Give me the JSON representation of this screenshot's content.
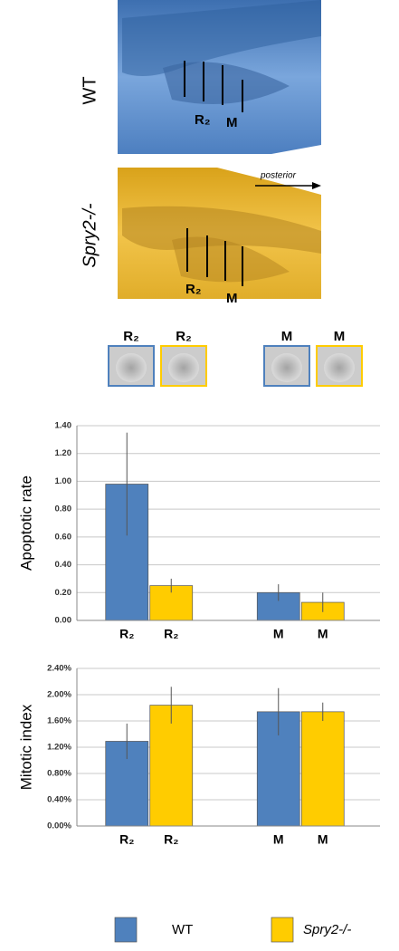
{
  "figure": {
    "wt_panel": {
      "label": "WT",
      "marks": [
        "R₂",
        "M"
      ]
    },
    "spry_panel": {
      "label": "Spry2-/-",
      "marks": [
        "R₂",
        "M"
      ],
      "arrow": "posterior"
    },
    "thumbnails": [
      "R₂",
      "R₂",
      "M",
      "M"
    ]
  },
  "chart_data": [
    {
      "type": "bar",
      "ylabel": "Apoptotic rate",
      "categories": [
        "R₂",
        "M"
      ],
      "series": [
        {
          "name": "WT",
          "color": "#4f81bd",
          "values": [
            0.98,
            0.2
          ],
          "errors": [
            0.37,
            0.06
          ]
        },
        {
          "name": "Spry2-/-",
          "color": "#ffcc00",
          "values": [
            0.25,
            0.13
          ],
          "errors": [
            0.05,
            0.07
          ]
        }
      ],
      "ylim": [
        0,
        1.4
      ],
      "yticks": [
        {
          "value": 0,
          "label": "0.00"
        },
        {
          "value": 0.2,
          "label": "0.20"
        },
        {
          "value": 0.4,
          "label": "0.40"
        },
        {
          "value": 0.6,
          "label": "0.60"
        },
        {
          "value": 0.8,
          "label": "0.80"
        },
        {
          "value": 1.0,
          "label": "1.00"
        },
        {
          "value": 1.2,
          "label": "1.20"
        },
        {
          "value": 1.4,
          "label": "1.40"
        }
      ],
      "grid": true
    },
    {
      "type": "bar",
      "ylabel": "Mitotic index",
      "categories": [
        "R₂",
        "M"
      ],
      "series": [
        {
          "name": "WT",
          "color": "#4f81bd",
          "values": [
            1.29,
            1.74
          ],
          "errors": [
            0.27,
            0.36
          ]
        },
        {
          "name": "Spry2-/-",
          "color": "#ffcc00",
          "values": [
            1.84,
            1.74
          ],
          "errors": [
            0.28,
            0.14
          ]
        }
      ],
      "ylim": [
        0,
        2.4
      ],
      "yticks": [
        {
          "value": 0,
          "label": "0.00%"
        },
        {
          "value": 0.4,
          "label": "0.40%"
        },
        {
          "value": 0.8,
          "label": "0.80%"
        },
        {
          "value": 1.2,
          "label": "1.20%"
        },
        {
          "value": 1.6,
          "label": "1.60%"
        },
        {
          "value": 2.0,
          "label": "2.00%"
        },
        {
          "value": 2.4,
          "label": "2.40%"
        }
      ],
      "grid": true,
      "legend": "bottom"
    }
  ]
}
